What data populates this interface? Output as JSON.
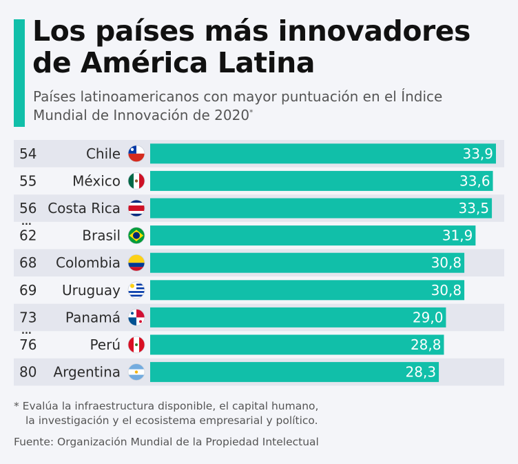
{
  "header": {
    "title": "Los países más innovadores de América Latina",
    "subtitle": "Países latinoamericanos con mayor puntuación en el Índice Mundial de Innovación de 2020",
    "subtitle_mark": "*"
  },
  "chart_data": {
    "type": "bar",
    "orientation": "horizontal",
    "categories": [
      "Chile",
      "México",
      "Costa Rica",
      "Brasil",
      "Colombia",
      "Uruguay",
      "Panamá",
      "Perú",
      "Argentina"
    ],
    "ranks": [
      "54",
      "55",
      "56",
      "62",
      "68",
      "69",
      "73",
      "76",
      "80"
    ],
    "values": [
      33.9,
      33.6,
      33.5,
      31.9,
      30.8,
      30.8,
      29.0,
      28.8,
      28.3
    ],
    "value_labels": [
      "33,9",
      "33,6",
      "33,5",
      "31,9",
      "30,8",
      "30,8",
      "29,0",
      "28,8",
      "28,3"
    ],
    "rank_gap_after": [
      false,
      false,
      true,
      true,
      false,
      true,
      true,
      true,
      false
    ],
    "gap_marker": "...",
    "flags": [
      "chile-flag",
      "mexico-flag",
      "costa-rica-flag",
      "brazil-flag",
      "colombia-flag",
      "uruguay-flag",
      "panama-flag",
      "peru-flag",
      "argentina-flag"
    ],
    "xlim": [
      0,
      33.9
    ],
    "bar_color": "#11bfa9",
    "stripe_color": "#e4e6ee",
    "label_color": "#ffffff"
  },
  "footer": {
    "note_line1": "* Evalúa la infraestructura disponible, el capital humano,",
    "note_line2": "la investigación y el ecosistema empresarial y político.",
    "source": "Fuente: Organización Mundial de la Propiedad Intelectual"
  }
}
